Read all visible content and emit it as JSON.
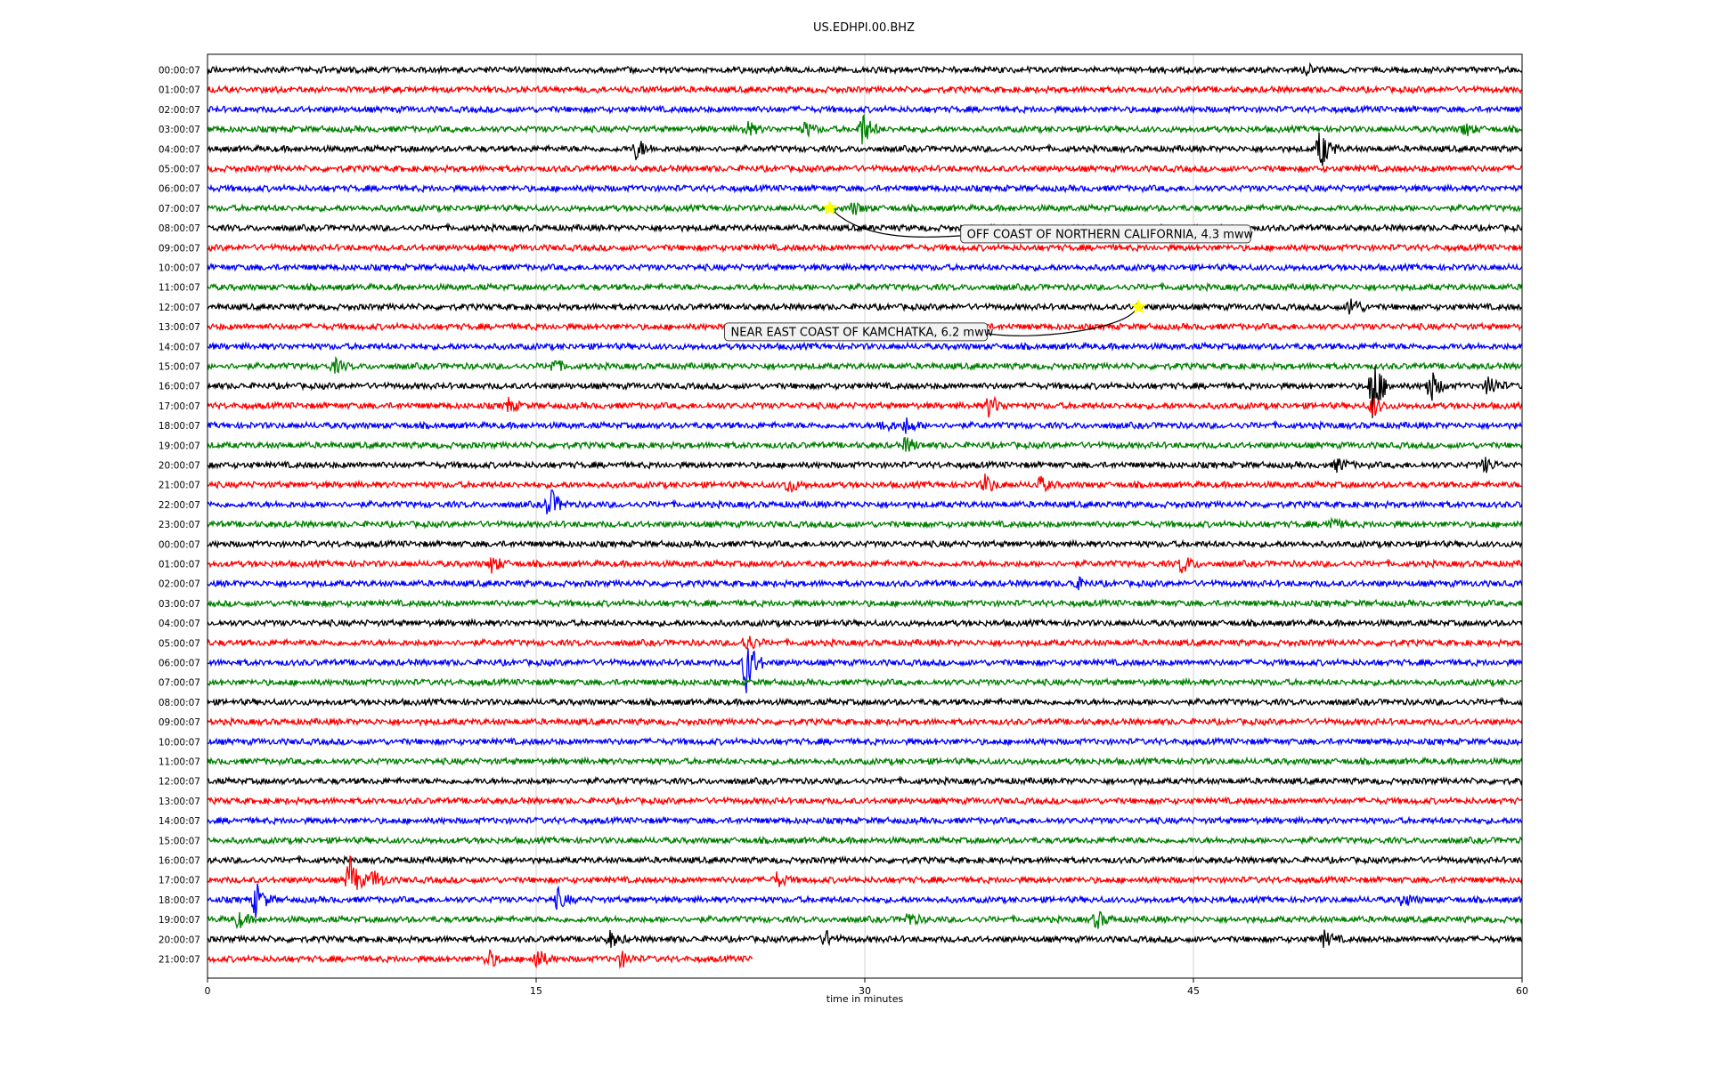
{
  "chart_data": {
    "type": "line",
    "title": "US.EDHPI.00.BHZ",
    "xlabel": "time in minutes",
    "ylabel": "",
    "xlim": [
      0,
      60
    ],
    "x_ticks": [
      0,
      15,
      30,
      45,
      60
    ],
    "grid": "vertical lines at 15, 30, 45",
    "row_labels": [
      "00:00:07",
      "01:00:07",
      "02:00:07",
      "03:00:07",
      "04:00:07",
      "05:00:07",
      "06:00:07",
      "07:00:07",
      "08:00:07",
      "09:00:07",
      "10:00:07",
      "11:00:07",
      "12:00:07",
      "13:00:07",
      "14:00:07",
      "15:00:07",
      "16:00:07",
      "17:00:07",
      "18:00:07",
      "19:00:07",
      "20:00:07",
      "21:00:07",
      "22:00:07",
      "23:00:07",
      "00:00:07",
      "01:00:07",
      "02:00:07",
      "03:00:07",
      "04:00:07",
      "05:00:07",
      "06:00:07",
      "07:00:07",
      "08:00:07",
      "09:00:07",
      "10:00:07",
      "11:00:07",
      "12:00:07",
      "13:00:07",
      "14:00:07",
      "15:00:07",
      "16:00:07",
      "17:00:07",
      "18:00:07",
      "19:00:07",
      "20:00:07",
      "21:00:07"
    ],
    "trace_colors": [
      "#000000",
      "#ff0000",
      "#0000ff",
      "#008000"
    ],
    "last_row_end_minute": 24.9,
    "events": [
      {
        "row": 0,
        "minute": 50.1,
        "amp": 0.3
      },
      {
        "row": 3,
        "minute": 24.6,
        "amp": 0.4
      },
      {
        "row": 3,
        "minute": 27.3,
        "amp": 0.35
      },
      {
        "row": 3,
        "minute": 29.9,
        "amp": 0.9
      },
      {
        "row": 3,
        "minute": 57.4,
        "amp": 0.35
      },
      {
        "row": 4,
        "minute": 19.6,
        "amp": 0.55
      },
      {
        "row": 4,
        "minute": 50.8,
        "amp": 1.1
      },
      {
        "row": 7,
        "minute": 29.5,
        "amp": 0.3
      },
      {
        "row": 12,
        "minute": 52.2,
        "amp": 0.55
      },
      {
        "row": 15,
        "minute": 5.8,
        "amp": 0.35
      },
      {
        "row": 15,
        "minute": 15.8,
        "amp": 0.35
      },
      {
        "row": 16,
        "minute": 53.2,
        "amp": 1.9
      },
      {
        "row": 16,
        "minute": 55.8,
        "amp": 0.9
      },
      {
        "row": 16,
        "minute": 58.5,
        "amp": 0.6
      },
      {
        "row": 17,
        "minute": 13.7,
        "amp": 0.35
      },
      {
        "row": 17,
        "minute": 35.7,
        "amp": 0.6
      },
      {
        "row": 17,
        "minute": 53.2,
        "amp": 0.5
      },
      {
        "row": 18,
        "minute": 30.8,
        "amp": 0.35
      },
      {
        "row": 18,
        "minute": 31.9,
        "amp": 0.4
      },
      {
        "row": 19,
        "minute": 31.9,
        "amp": 0.4
      },
      {
        "row": 20,
        "minute": 51.6,
        "amp": 0.35
      },
      {
        "row": 20,
        "minute": 58.3,
        "amp": 0.35
      },
      {
        "row": 21,
        "minute": 26.5,
        "amp": 0.4
      },
      {
        "row": 21,
        "minute": 35.5,
        "amp": 0.5
      },
      {
        "row": 21,
        "minute": 38.0,
        "amp": 0.4
      },
      {
        "row": 22,
        "minute": 15.6,
        "amp": 0.9
      },
      {
        "row": 23,
        "minute": 51.2,
        "amp": 0.35
      },
      {
        "row": 25,
        "minute": 13.0,
        "amp": 0.45
      },
      {
        "row": 25,
        "minute": 44.5,
        "amp": 0.5
      },
      {
        "row": 26,
        "minute": 39.6,
        "amp": 0.35
      },
      {
        "row": 29,
        "minute": 24.6,
        "amp": 0.5
      },
      {
        "row": 30,
        "minute": 24.6,
        "amp": 1.6
      },
      {
        "row": 41,
        "minute": 6.5,
        "amp": 1.3
      },
      {
        "row": 41,
        "minute": 7.6,
        "amp": 0.5
      },
      {
        "row": 41,
        "minute": 26.0,
        "amp": 0.35
      },
      {
        "row": 42,
        "minute": 2.2,
        "amp": 0.9
      },
      {
        "row": 42,
        "minute": 16.0,
        "amp": 0.5
      },
      {
        "row": 42,
        "minute": 54.6,
        "amp": 0.35
      },
      {
        "row": 43,
        "minute": 1.4,
        "amp": 0.4
      },
      {
        "row": 43,
        "minute": 32.0,
        "amp": 0.35
      },
      {
        "row": 43,
        "minute": 40.6,
        "amp": 0.45
      },
      {
        "row": 44,
        "minute": 18.4,
        "amp": 0.4
      },
      {
        "row": 44,
        "minute": 28.2,
        "amp": 0.4
      },
      {
        "row": 44,
        "minute": 51.0,
        "amp": 0.4
      },
      {
        "row": 45,
        "minute": 12.8,
        "amp": 0.5
      },
      {
        "row": 45,
        "minute": 15.0,
        "amp": 0.6
      },
      {
        "row": 45,
        "minute": 18.9,
        "amp": 0.4
      }
    ],
    "annotations": [
      {
        "text": "OFF COAST OF NORTHERN CALIFORNIA, 4.3 mww",
        "row": 7,
        "minute": 28.4
      },
      {
        "text": "NEAR EAST COAST OF KAMCHATKA, 6.2 mww",
        "row": 12,
        "minute": 42.5
      }
    ],
    "marker_color": "#ffff00"
  }
}
